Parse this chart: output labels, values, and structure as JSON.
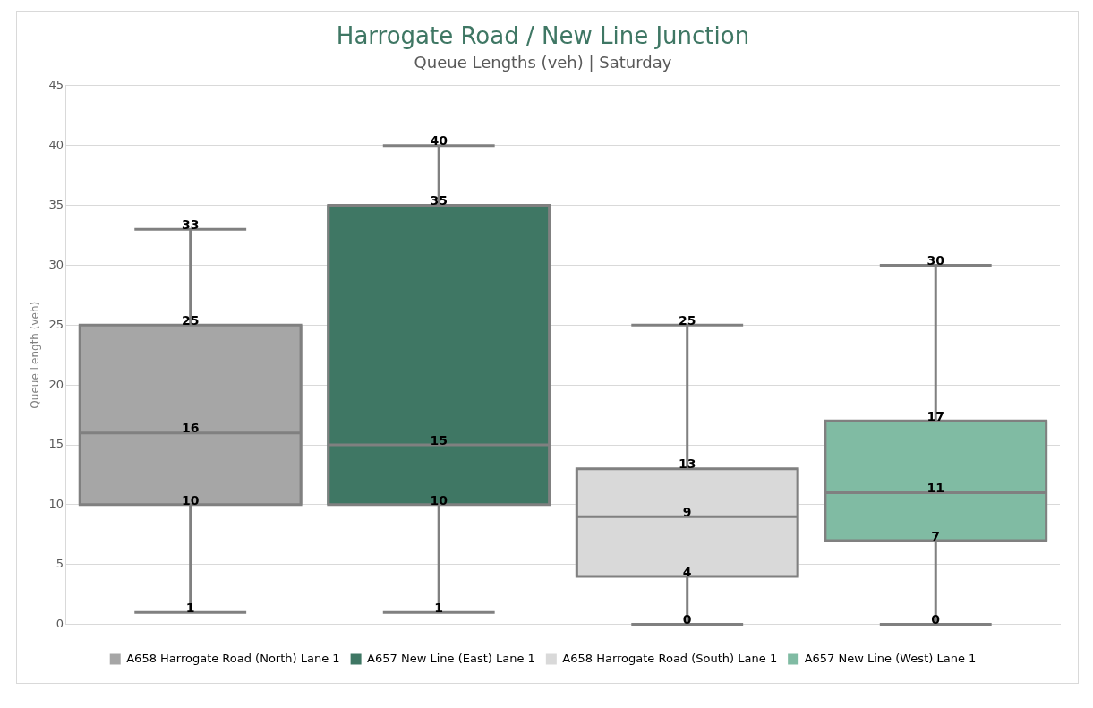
{
  "chart_data": {
    "type": "box",
    "title": "Harrogate Road / New Line Junction",
    "subtitle": "Queue Lengths (veh) | Saturday",
    "ylabel": "Queue Length (veh)",
    "categories": [
      null,
      null,
      null,
      null
    ],
    "series": [
      {
        "name": "A658 Harrogate Road (North) Lane 1",
        "color": "#a6a6a6",
        "boxes": [
          {
            "low": 1,
            "q1": 10,
            "median": 16,
            "q3": 25,
            "high": 33
          },
          null,
          null,
          null
        ],
        "value_labels": [
          [
            "1",
            "10",
            "16",
            "25",
            "33"
          ],
          null,
          null,
          null
        ]
      },
      {
        "name": "A657 New Line (East) Lane 1",
        "color": "#3f7764",
        "boxes": [
          null,
          {
            "low": 1,
            "q1": 10,
            "median": 15,
            "q3": 35,
            "high": 40
          },
          null,
          null
        ],
        "value_labels": [
          null,
          [
            "1",
            "10",
            "15",
            "35",
            "40"
          ],
          null,
          null
        ]
      },
      {
        "name": "A658 Harrogate Road (South) Lane 1",
        "color": "#d9d9d9",
        "boxes": [
          null,
          null,
          {
            "low": 0,
            "q1": 4,
            "median": 9,
            "q3": 13,
            "high": 25
          },
          null
        ],
        "value_labels": [
          null,
          null,
          [
            "0",
            "4",
            "9",
            "13",
            "25"
          ],
          null
        ]
      },
      {
        "name": "A657 New Line (West) Lane 1",
        "color": "#80bba3",
        "boxes": [
          null,
          null,
          null,
          {
            "low": 0,
            "q1": 7,
            "median": 11,
            "q3": 17,
            "high": 30
          }
        ],
        "value_labels": [
          null,
          null,
          null,
          [
            "0",
            "7",
            "11",
            "17",
            "30"
          ]
        ]
      }
    ],
    "ylim": [
      0,
      45
    ],
    "yticks": [
      0,
      5,
      10,
      15,
      20,
      25,
      30,
      35,
      40,
      45
    ],
    "grid": "y",
    "legend": "bottom"
  }
}
